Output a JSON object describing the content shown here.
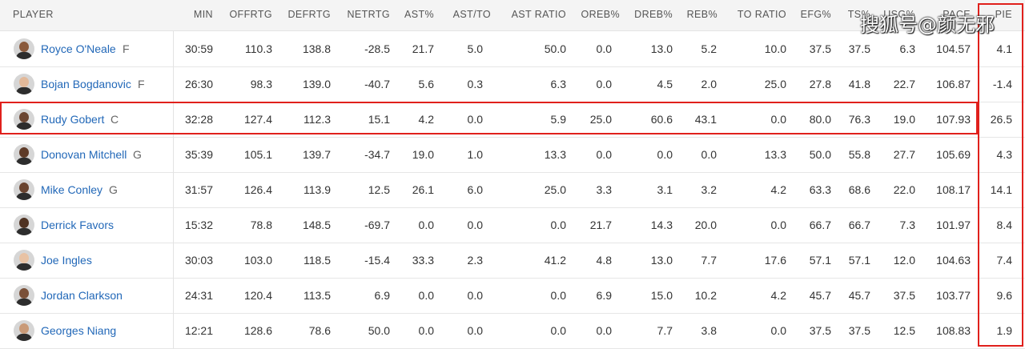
{
  "headers": {
    "player": "PLAYER",
    "cols": [
      "MIN",
      "OFFRTG",
      "DEFRTG",
      "NETRTG",
      "AST%",
      "AST/TO",
      "AST RATIO",
      "OREB%",
      "DREB%",
      "REB%",
      "TO RATIO",
      "EFG%",
      "TS%",
      "USG%",
      "PACE",
      "PIE"
    ]
  },
  "rows": [
    {
      "name": "Royce O'Neale",
      "pos": "F",
      "skin": "#8a5a3c",
      "stats": [
        "30:59",
        "110.3",
        "138.8",
        "-28.5",
        "21.7",
        "5.0",
        "50.0",
        "0.0",
        "13.0",
        "5.2",
        "10.0",
        "37.5",
        "37.5",
        "6.3",
        "104.57",
        "4.1"
      ]
    },
    {
      "name": "Bojan Bogdanovic",
      "pos": "F",
      "skin": "#e2b99a",
      "stats": [
        "26:30",
        "98.3",
        "139.0",
        "-40.7",
        "5.6",
        "0.3",
        "6.3",
        "0.0",
        "4.5",
        "2.0",
        "25.0",
        "27.8",
        "41.8",
        "22.7",
        "106.87",
        "-1.4"
      ]
    },
    {
      "name": "Rudy Gobert",
      "pos": "C",
      "skin": "#6b4632",
      "stats": [
        "32:28",
        "127.4",
        "112.3",
        "15.1",
        "4.2",
        "0.0",
        "5.9",
        "25.0",
        "60.6",
        "43.1",
        "0.0",
        "80.0",
        "76.3",
        "19.0",
        "107.93",
        "26.5"
      ]
    },
    {
      "name": "Donovan Mitchell",
      "pos": "G",
      "skin": "#5e3b28",
      "stats": [
        "35:39",
        "105.1",
        "139.7",
        "-34.7",
        "19.0",
        "1.0",
        "13.3",
        "0.0",
        "0.0",
        "0.0",
        "13.3",
        "50.0",
        "55.8",
        "27.7",
        "105.69",
        "4.3"
      ]
    },
    {
      "name": "Mike Conley",
      "pos": "G",
      "skin": "#6a4430",
      "stats": [
        "31:57",
        "126.4",
        "113.9",
        "12.5",
        "26.1",
        "6.0",
        "25.0",
        "3.3",
        "3.1",
        "3.2",
        "4.2",
        "63.3",
        "68.6",
        "22.0",
        "108.17",
        "14.1"
      ]
    },
    {
      "name": "Derrick Favors",
      "pos": "",
      "skin": "#4f3222",
      "stats": [
        "15:32",
        "78.8",
        "148.5",
        "-69.7",
        "0.0",
        "0.0",
        "0.0",
        "21.7",
        "14.3",
        "20.0",
        "0.0",
        "66.7",
        "66.7",
        "7.3",
        "101.97",
        "8.4"
      ]
    },
    {
      "name": "Joe Ingles",
      "pos": "",
      "skin": "#e8c2a4",
      "stats": [
        "30:03",
        "103.0",
        "118.5",
        "-15.4",
        "33.3",
        "2.3",
        "41.2",
        "4.8",
        "13.0",
        "7.7",
        "17.6",
        "57.1",
        "57.1",
        "12.0",
        "104.63",
        "7.4"
      ]
    },
    {
      "name": "Jordan Clarkson",
      "pos": "",
      "skin": "#7a5038",
      "stats": [
        "24:31",
        "120.4",
        "113.5",
        "6.9",
        "0.0",
        "0.0",
        "0.0",
        "6.9",
        "15.0",
        "10.2",
        "4.2",
        "45.7",
        "45.7",
        "37.5",
        "103.77",
        "9.6"
      ]
    },
    {
      "name": "Georges Niang",
      "pos": "",
      "skin": "#c99a78",
      "stats": [
        "12:21",
        "128.6",
        "78.6",
        "50.0",
        "0.0",
        "0.0",
        "0.0",
        "0.0",
        "7.7",
        "3.8",
        "0.0",
        "37.5",
        "37.5",
        "12.5",
        "108.83",
        "1.9"
      ]
    }
  ],
  "watermark": "搜狐号@颜无邪",
  "highlight_color": "#e0201c",
  "link_color": "#2268b8"
}
